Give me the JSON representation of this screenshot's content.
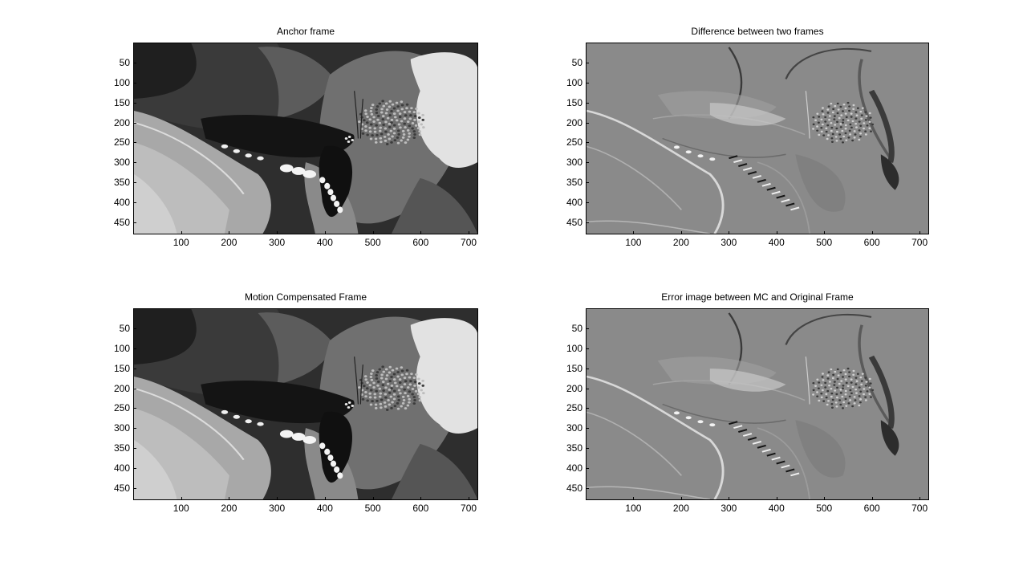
{
  "figure": {
    "panels": [
      {
        "id": "anchor",
        "title": "Anchor frame",
        "kind": "grayscale-image",
        "content": "butterfly-on-flower"
      },
      {
        "id": "difference",
        "title": "Difference between two frames",
        "kind": "difference-image",
        "content": "butterfly-on-flower"
      },
      {
        "id": "motion-compensated",
        "title": "Motion Compensated Frame",
        "kind": "grayscale-image",
        "content": "butterfly-on-flower"
      },
      {
        "id": "error",
        "title": "Error image between MC and Original Frame",
        "kind": "difference-image",
        "content": "butterfly-on-flower"
      }
    ],
    "axis": {
      "x_range": [
        0,
        720
      ],
      "y_range": [
        0,
        480
      ],
      "x_ticks": [
        "100",
        "200",
        "300",
        "400",
        "500",
        "600",
        "700"
      ],
      "y_ticks": [
        "50",
        "100",
        "150",
        "200",
        "250",
        "300",
        "350",
        "400",
        "450"
      ]
    },
    "colors": {
      "background": "#ffffff",
      "axis": "#000000"
    }
  }
}
